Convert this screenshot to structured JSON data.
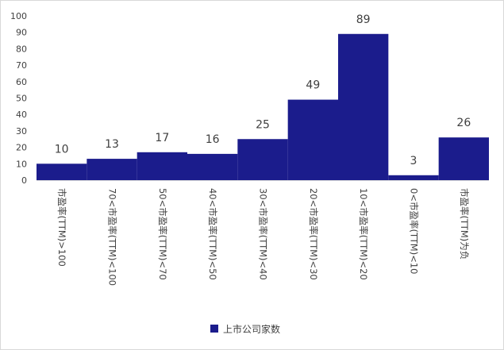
{
  "chart_data": {
    "type": "bar",
    "categories": [
      "市盈率(TTM)>100",
      "70<市盈率(TTM)<100",
      "50<市盈率(TTM)<70",
      "40<市盈率(TTM)<50",
      "30<市盈率(TTM)<40",
      "20<市盈率(TTM)<30",
      "10<市盈率(TTM)<20",
      "0<市盈率(TTM)<10",
      "市盈率(TTM)为负"
    ],
    "series": [
      {
        "name": "上市公司家数",
        "values": [
          10,
          13,
          17,
          16,
          25,
          49,
          89,
          3,
          26
        ]
      }
    ],
    "ylim": [
      0,
      100
    ],
    "yticks": [
      0,
      10,
      20,
      30,
      40,
      50,
      60,
      70,
      80,
      90,
      100
    ],
    "grid": false,
    "legend_position": "bottom",
    "colors": {
      "bar": "#1B1C8C",
      "text": "#404040",
      "axis": "#d9d9d9"
    }
  }
}
